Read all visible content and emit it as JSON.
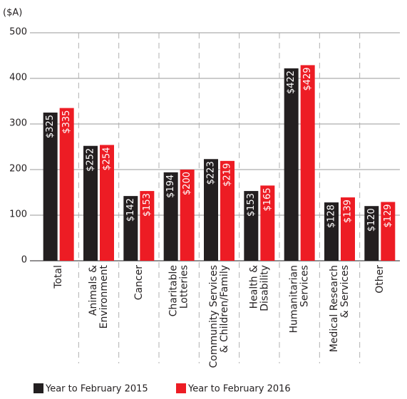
{
  "chart_data": {
    "type": "bar",
    "ylabel": "($A)",
    "categories": [
      [
        "Total"
      ],
      [
        "Animals &",
        "Environment"
      ],
      [
        "Cancer"
      ],
      [
        "Charitable",
        "Lotteries"
      ],
      [
        "Community Services",
        "& Children/Family"
      ],
      [
        "Health &",
        "Disability"
      ],
      [
        "Humanitarian",
        "Services"
      ],
      [
        "Medical Research",
        "& Services"
      ],
      [
        "Other"
      ]
    ],
    "series": [
      {
        "name": "Year to February 2015",
        "color": "#231f20",
        "values": [
          325,
          252,
          142,
          194,
          223,
          153,
          422,
          128,
          120
        ],
        "value_labels": [
          "$325",
          "$252",
          "$142",
          "$194",
          "$223",
          "$153",
          "$422",
          "$128",
          "$120"
        ]
      },
      {
        "name": "Year to February 2016",
        "color": "#ed1c24",
        "values": [
          335,
          254,
          153,
          200,
          219,
          165,
          429,
          139,
          129
        ],
        "value_labels": [
          "$335",
          "$254",
          "$153",
          "$200",
          "$219",
          "$165",
          "$429",
          "$139",
          "$129"
        ]
      }
    ],
    "ylim": [
      0,
      500
    ],
    "yticks": [
      0,
      100,
      200,
      300,
      400,
      500
    ],
    "grid": true
  }
}
